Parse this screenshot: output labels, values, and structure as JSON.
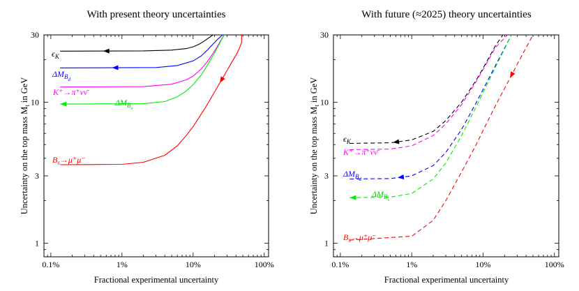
{
  "chart_data": [
    {
      "type": "line",
      "title": "With present theory uncertainties",
      "xlabel": "Fractional experimental uncertainty",
      "ylabel": "Uncertainty on the top mass M_t in GeV",
      "x_scale": "log",
      "y_scale": "log",
      "xlim": [
        0.0008,
        1.15
      ],
      "ylim": [
        0.8,
        30
      ],
      "x_ticks": [
        0.001,
        0.01,
        0.1,
        1
      ],
      "x_tick_labels": [
        "0.1%",
        "1%",
        "10%",
        "100%"
      ],
      "y_ticks": [
        1,
        3,
        10,
        30
      ],
      "y_tick_labels": [
        "1",
        "3",
        "10",
        "30"
      ],
      "line_style": "solid",
      "series": [
        {
          "name": "εK",
          "label": "ϵ_K",
          "color": "#000000",
          "arrow_x": 0.006,
          "x": [
            0.00135,
            0.02,
            0.05,
            0.08,
            0.1,
            0.12,
            0.14,
            0.16,
            0.19
          ],
          "y": [
            23,
            23.1,
            23.4,
            24,
            24.7,
            25.7,
            26.9,
            28.2,
            30
          ]
        },
        {
          "name": "ΔMBd",
          "label": "ΔM_B_d",
          "color": "#0000ff",
          "arrow_x": 0.008,
          "x": [
            0.00135,
            0.03,
            0.06,
            0.1,
            0.13,
            0.16,
            0.19,
            0.22,
            0.26
          ],
          "y": [
            17.5,
            17.6,
            18.2,
            19.6,
            21.3,
            23.5,
            25.8,
            27.9,
            30
          ]
        },
        {
          "name": "K+→π+νν̄",
          "label": "K⁺→π⁺νν̄",
          "color": "#ff00ff",
          "arrow_x": null,
          "x": [
            0.00135,
            0.02,
            0.05,
            0.08,
            0.1,
            0.13,
            0.16,
            0.2,
            0.25,
            0.28
          ],
          "y": [
            12.8,
            12.9,
            13.4,
            14.4,
            15.3,
            17.2,
            19.5,
            23,
            27.9,
            30.5
          ]
        },
        {
          "name": "ΔMBs",
          "label": "ΔM_B_s",
          "color": "#00ee00",
          "arrow_x": 0.0015,
          "x": [
            0.00135,
            0.02,
            0.04,
            0.06,
            0.08,
            0.1,
            0.13,
            0.16,
            0.2,
            0.25,
            0.28
          ],
          "y": [
            9.7,
            9.75,
            10.1,
            10.9,
            12,
            13.3,
            15.6,
            18.4,
            22.3,
            27.6,
            30.5
          ]
        },
        {
          "name": "Bs→μ+μ−",
          "label": "B_s→μ⁺μ⁻",
          "color": "#ff0000",
          "arrow_x": 0.25,
          "x": [
            0.00135,
            0.01,
            0.02,
            0.04,
            0.06,
            0.08,
            0.1,
            0.15,
            0.2,
            0.25,
            0.3,
            0.35,
            0.42,
            0.45,
            0.48,
            0.48
          ],
          "y": [
            3.6,
            3.62,
            3.75,
            4.2,
            4.9,
            5.8,
            6.7,
            9.2,
            11.8,
            14.3,
            16.8,
            19.2,
            22.5,
            24.3,
            26.5,
            30
          ]
        }
      ]
    },
    {
      "type": "line",
      "title": "With future (≈2025) theory uncertainties",
      "xlabel": "Fractional experimental uncertainty",
      "ylabel": "Uncertainty on the top mass M_t in GeV",
      "x_scale": "log",
      "y_scale": "log",
      "xlim": [
        0.0008,
        1.15
      ],
      "ylim": [
        0.8,
        30
      ],
      "x_ticks": [
        0.001,
        0.01,
        0.1,
        1
      ],
      "x_tick_labels": [
        "0.1%",
        "1%",
        "10%",
        "100%"
      ],
      "y_ticks": [
        1,
        3,
        10,
        30
      ],
      "y_tick_labels": [
        "1",
        "3",
        "10",
        "30"
      ],
      "line_style": "dashed",
      "series": [
        {
          "name": "εK",
          "label": "ϵ_K",
          "color": "#000000",
          "arrow_x": 0.006,
          "x": [
            0.00135,
            0.005,
            0.01,
            0.02,
            0.03,
            0.05,
            0.08,
            0.1,
            0.15,
            0.19
          ],
          "y": [
            5.1,
            5.15,
            5.4,
            6.2,
            7.4,
            10,
            14.3,
            17.4,
            25.3,
            30
          ]
        },
        {
          "name": "K+→π+νν̄",
          "label": "K⁺→π⁺νν̄",
          "color": "#ff00ff",
          "arrow_x": null,
          "x": [
            0.00135,
            0.005,
            0.01,
            0.02,
            0.03,
            0.05,
            0.08,
            0.1,
            0.15,
            0.22
          ],
          "y": [
            4.6,
            4.65,
            4.9,
            5.8,
            7,
            9.6,
            14,
            17,
            24.5,
            30
          ]
        },
        {
          "name": "ΔMBd",
          "label": "ΔM_B_d",
          "color": "#0000ff",
          "arrow_x": 0.007,
          "x": [
            0.00135,
            0.005,
            0.01,
            0.02,
            0.03,
            0.05,
            0.08,
            0.1,
            0.15,
            0.25
          ],
          "y": [
            2.85,
            2.87,
            3,
            3.55,
            4.4,
            6.4,
            9.9,
            12.3,
            18.3,
            30
          ]
        },
        {
          "name": "ΔMBs",
          "label": "ΔM_B_s",
          "color": "#00ee00",
          "arrow_x": 0.0015,
          "x": [
            0.00135,
            0.005,
            0.01,
            0.02,
            0.03,
            0.05,
            0.08,
            0.1,
            0.15,
            0.25
          ],
          "y": [
            2.1,
            2.12,
            2.25,
            2.85,
            3.7,
            5.8,
            9.3,
            11.7,
            17.8,
            30
          ]
        },
        {
          "name": "Bs→μ+μ−",
          "label": "B_s→μ⁺μ⁻",
          "color": "#ff0000",
          "arrow_x": 0.25,
          "x": [
            0.00135,
            0.01,
            0.02,
            0.03,
            0.05,
            0.08,
            0.1,
            0.15,
            0.2,
            0.3,
            0.4,
            0.5
          ],
          "y": [
            1.05,
            1.12,
            1.45,
            2,
            3.2,
            5,
            6.3,
            9.5,
            12.5,
            18.5,
            24.3,
            30
          ]
        }
      ]
    }
  ]
}
